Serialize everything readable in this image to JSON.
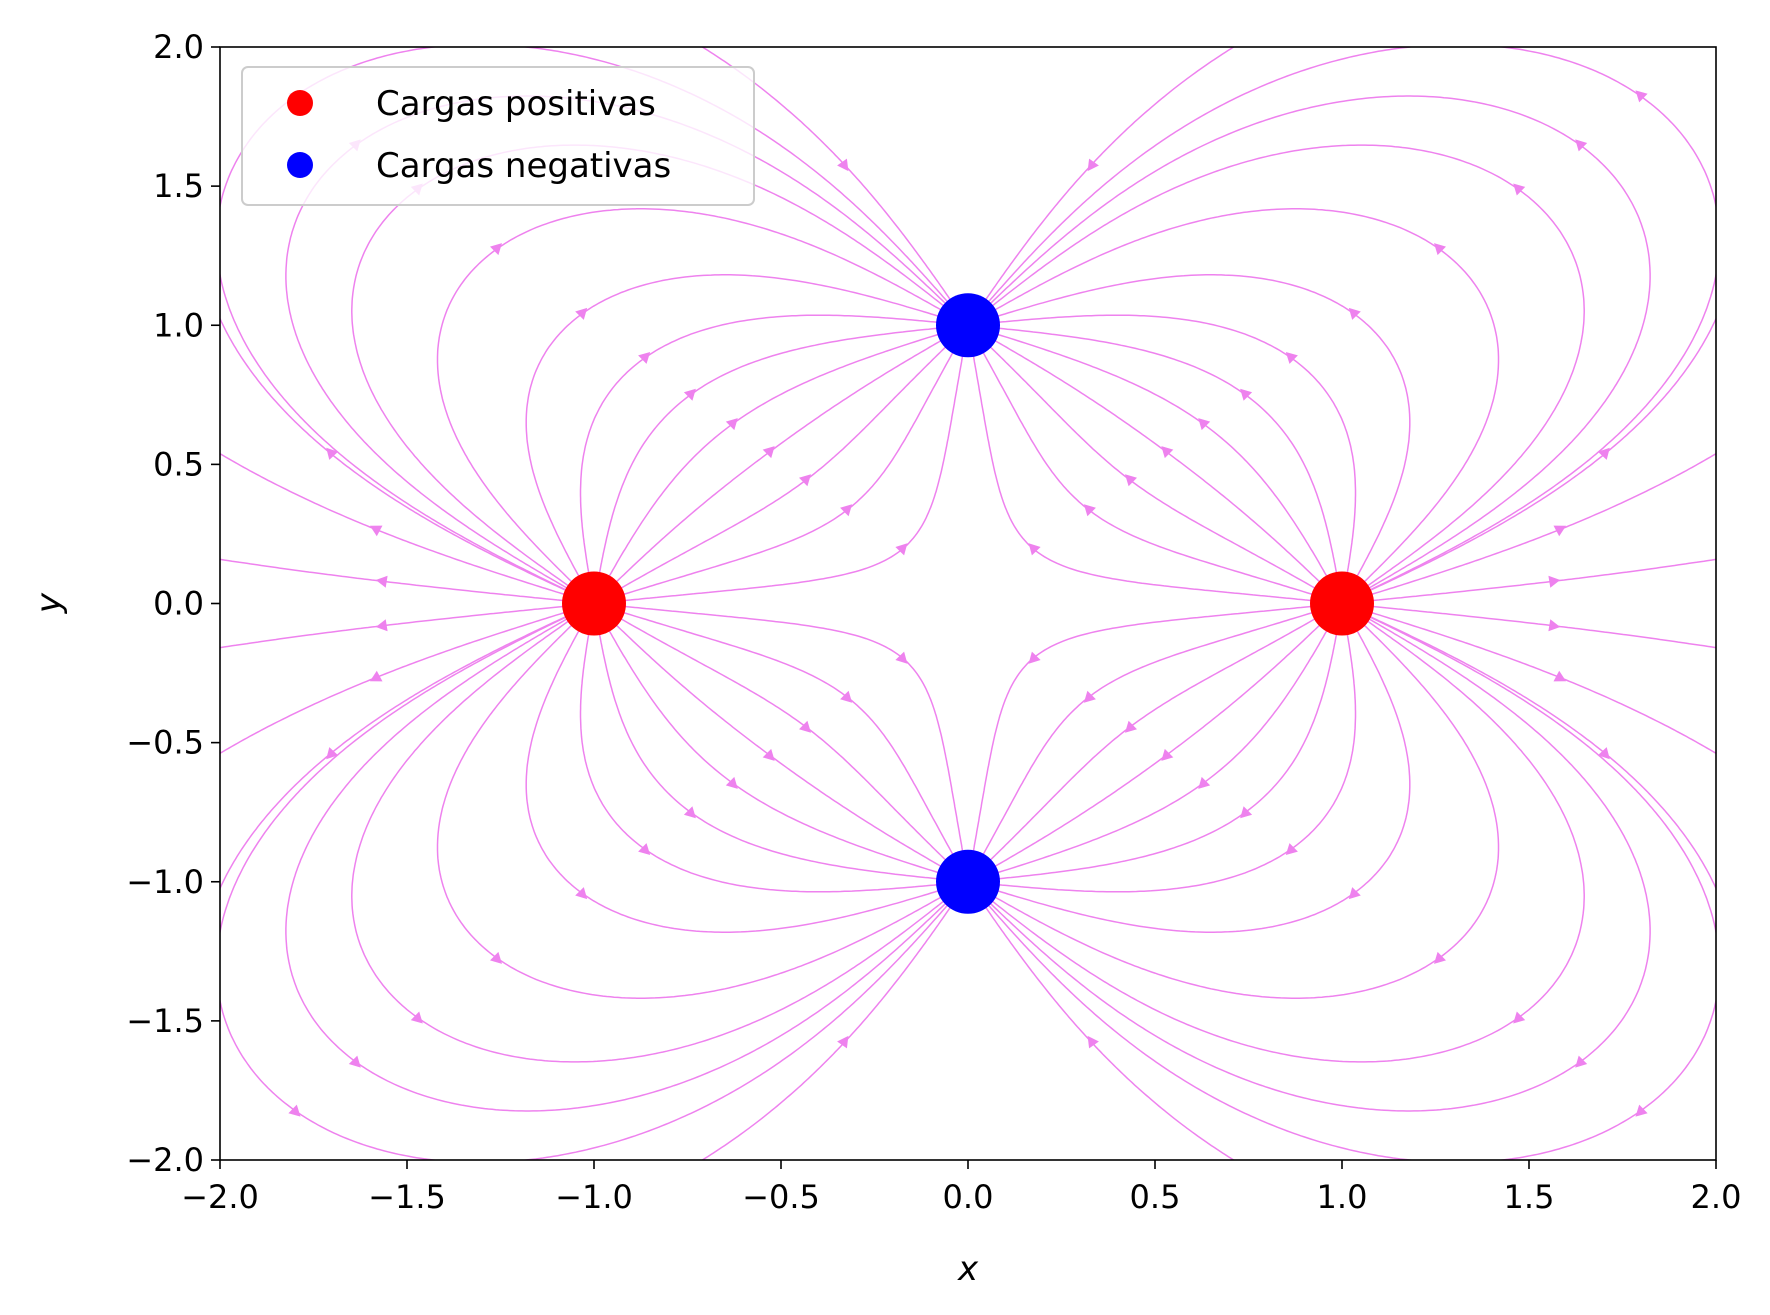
{
  "chart_data": {
    "type": "scatter",
    "title": "",
    "xlabel": "x",
    "ylabel": "y",
    "xlim": [
      -2.0,
      2.0
    ],
    "ylim": [
      -2.0,
      2.0
    ],
    "x_ticks": [
      "−2.0",
      "−1.5",
      "−1.0",
      "−0.5",
      "0.0",
      "0.5",
      "1.0",
      "1.5",
      "2.0"
    ],
    "y_ticks": [
      "2.0",
      "1.5",
      "1.0",
      "0.5",
      "0.0",
      "−0.5",
      "−1.0",
      "−1.5",
      "−2.0"
    ],
    "grid": false,
    "legend_position": "upper-left",
    "series": [
      {
        "name": "Cargas positivas",
        "color": "#ff0000",
        "points": [
          {
            "x": -1.0,
            "y": 0.0,
            "q": 1
          },
          {
            "x": 1.0,
            "y": 0.0,
            "q": 1
          }
        ]
      },
      {
        "name": "Cargas negativas",
        "color": "#0000ff",
        "points": [
          {
            "x": 0.0,
            "y": 1.0,
            "q": -1
          },
          {
            "x": 0.0,
            "y": -1.0,
            "q": -1
          }
        ]
      }
    ],
    "field_lines": {
      "style": "streamplot",
      "color": "#ee82ee"
    }
  }
}
